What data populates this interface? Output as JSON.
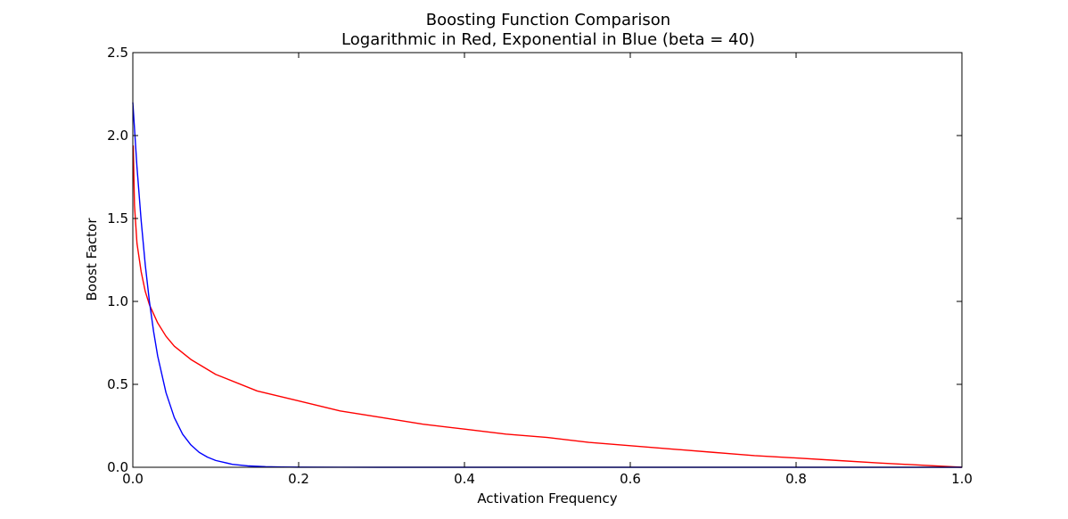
{
  "chart_data": {
    "type": "line",
    "title": "Boosting Function Comparison",
    "subtitle": "Logarithmic in Red, Exponential in Blue (beta = 40)",
    "xlabel": "Activation Frequency",
    "ylabel": "Boost Factor",
    "xlim": [
      0.0,
      1.0
    ],
    "ylim": [
      0.0,
      2.5
    ],
    "grid": false,
    "x_ticks": [
      "0.0",
      "0.2",
      "0.4",
      "0.6",
      "0.8",
      "1.0"
    ],
    "y_ticks": [
      "0.0",
      "0.5",
      "1.0",
      "1.5",
      "2.0",
      "2.5"
    ],
    "series": [
      {
        "color": "#ff0000",
        "x": [
          0.0005,
          0.002,
          0.005,
          0.01,
          0.015,
          0.02,
          0.03,
          0.04,
          0.05,
          0.07,
          0.1,
          0.15,
          0.2,
          0.25,
          0.3,
          0.35,
          0.4,
          0.45,
          0.5,
          0.55,
          0.6,
          0.65,
          0.7,
          0.75,
          0.8,
          0.85,
          0.9,
          0.95,
          1.0
        ],
        "y": [
          1.94,
          1.58,
          1.35,
          1.18,
          1.06,
          0.98,
          0.87,
          0.79,
          0.73,
          0.65,
          0.56,
          0.46,
          0.4,
          0.34,
          0.3,
          0.26,
          0.23,
          0.2,
          0.18,
          0.15,
          0.13,
          0.11,
          0.09,
          0.07,
          0.056,
          0.041,
          0.026,
          0.013,
          0.0
        ]
      },
      {
        "color": "#0000ff",
        "x": [
          0.0,
          0.005,
          0.01,
          0.015,
          0.02,
          0.025,
          0.03,
          0.04,
          0.05,
          0.06,
          0.07,
          0.08,
          0.09,
          0.1,
          0.12,
          0.14,
          0.16,
          0.18,
          0.2,
          0.25,
          0.3,
          0.4,
          0.5,
          0.6,
          0.7,
          0.8,
          0.9,
          1.0
        ],
        "y": [
          2.2,
          1.81,
          1.49,
          1.22,
          1.0,
          0.82,
          0.67,
          0.45,
          0.3,
          0.2,
          0.135,
          0.09,
          0.061,
          0.041,
          0.018,
          0.008,
          0.0037,
          0.0017,
          0.0007,
          0.0001,
          0.0,
          0.0,
          0.0,
          0.0,
          0.0,
          0.0,
          0.0,
          0.0
        ]
      }
    ]
  }
}
